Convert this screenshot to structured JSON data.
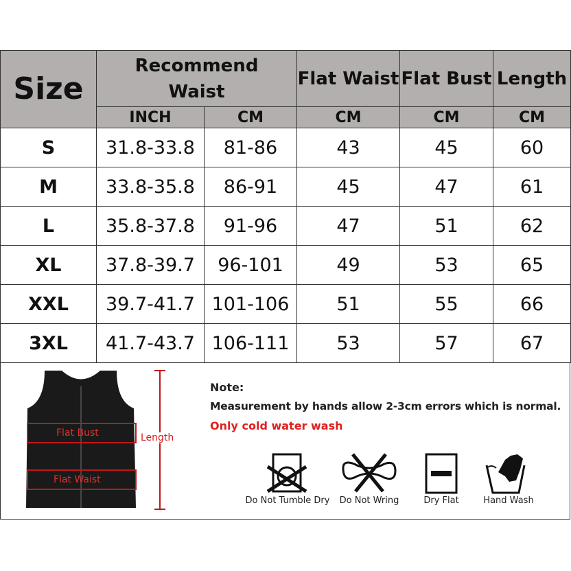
{
  "header": {
    "size": "Size",
    "recommend_waist": "Recommend Waist",
    "flat_waist": "Flat Waist",
    "flat_bust": "Flat Bust",
    "length": "Length"
  },
  "units": [
    "INCH",
    "CM",
    "CM",
    "CM",
    "CM"
  ],
  "rows": [
    [
      "S",
      "31.8-33.8",
      "81-86",
      "43",
      "45",
      "60"
    ],
    [
      "M",
      "33.8-35.8",
      "86-91",
      "45",
      "47",
      "61"
    ],
    [
      "L",
      "35.8-37.8",
      "91-96",
      "47",
      "51",
      "62"
    ],
    [
      "XL",
      "37.8-39.7",
      "96-101",
      "49",
      "53",
      "65"
    ],
    [
      "XXL",
      "39.7-41.7",
      "101-106",
      "51",
      "55",
      "66"
    ],
    [
      "3XL",
      "41.7-43.7",
      "106-111",
      "53",
      "57",
      "67"
    ]
  ],
  "diagram": {
    "flat_bust": "Flat Bust",
    "flat_waist": "Flat Waist",
    "length": "Length"
  },
  "note": {
    "title": "Note:",
    "line1": "Measurement by hands allow 2-3cm errors which is normal.",
    "line2": "Only cold water wash",
    "line2_color": "#e02020"
  },
  "care": [
    {
      "icon": "do-not-tumble-dry-icon",
      "label": "Do Not Tumble Dry"
    },
    {
      "icon": "do-not-wring-icon",
      "label": "Do Not Wring"
    },
    {
      "icon": "dry-flat-icon",
      "label": "Dry Flat"
    },
    {
      "icon": "hand-wash-icon",
      "label": "Hand Wash"
    }
  ],
  "colors": {
    "header_bg": "#b3afae",
    "measure_red": "#d42020"
  }
}
